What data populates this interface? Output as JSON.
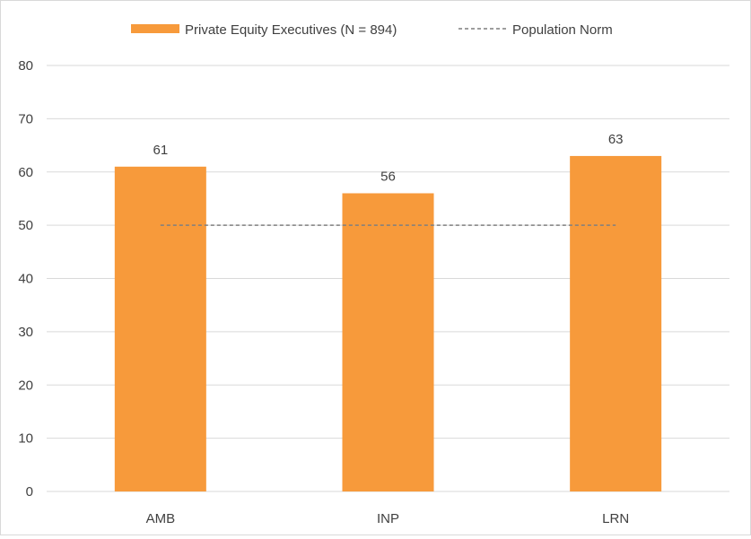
{
  "legend": {
    "bar_label": "Private Equity Executives (N = 894)",
    "line_label": "Population Norm"
  },
  "chart_data": {
    "type": "bar",
    "categories": [
      "AMB",
      "INP",
      "LRN"
    ],
    "series": [
      {
        "name": "Private Equity Executives (N = 894)",
        "type": "bar",
        "values": [
          61,
          56,
          63
        ],
        "data_labels": [
          "61",
          "56",
          "63"
        ],
        "color": "#F79A3B"
      },
      {
        "name": "Population Norm",
        "type": "line",
        "style": "dashed",
        "values": [
          50,
          50,
          50
        ],
        "color": "#7f7f7f"
      }
    ],
    "ylim": [
      0,
      80
    ],
    "yticks": [
      0,
      10,
      20,
      30,
      40,
      50,
      60,
      70,
      80
    ],
    "ytick_labels": [
      "0",
      "10",
      "20",
      "30",
      "40",
      "50",
      "60",
      "70",
      "80"
    ],
    "grid": true,
    "legend_position": "top",
    "title": "",
    "xlabel": "",
    "ylabel": ""
  }
}
